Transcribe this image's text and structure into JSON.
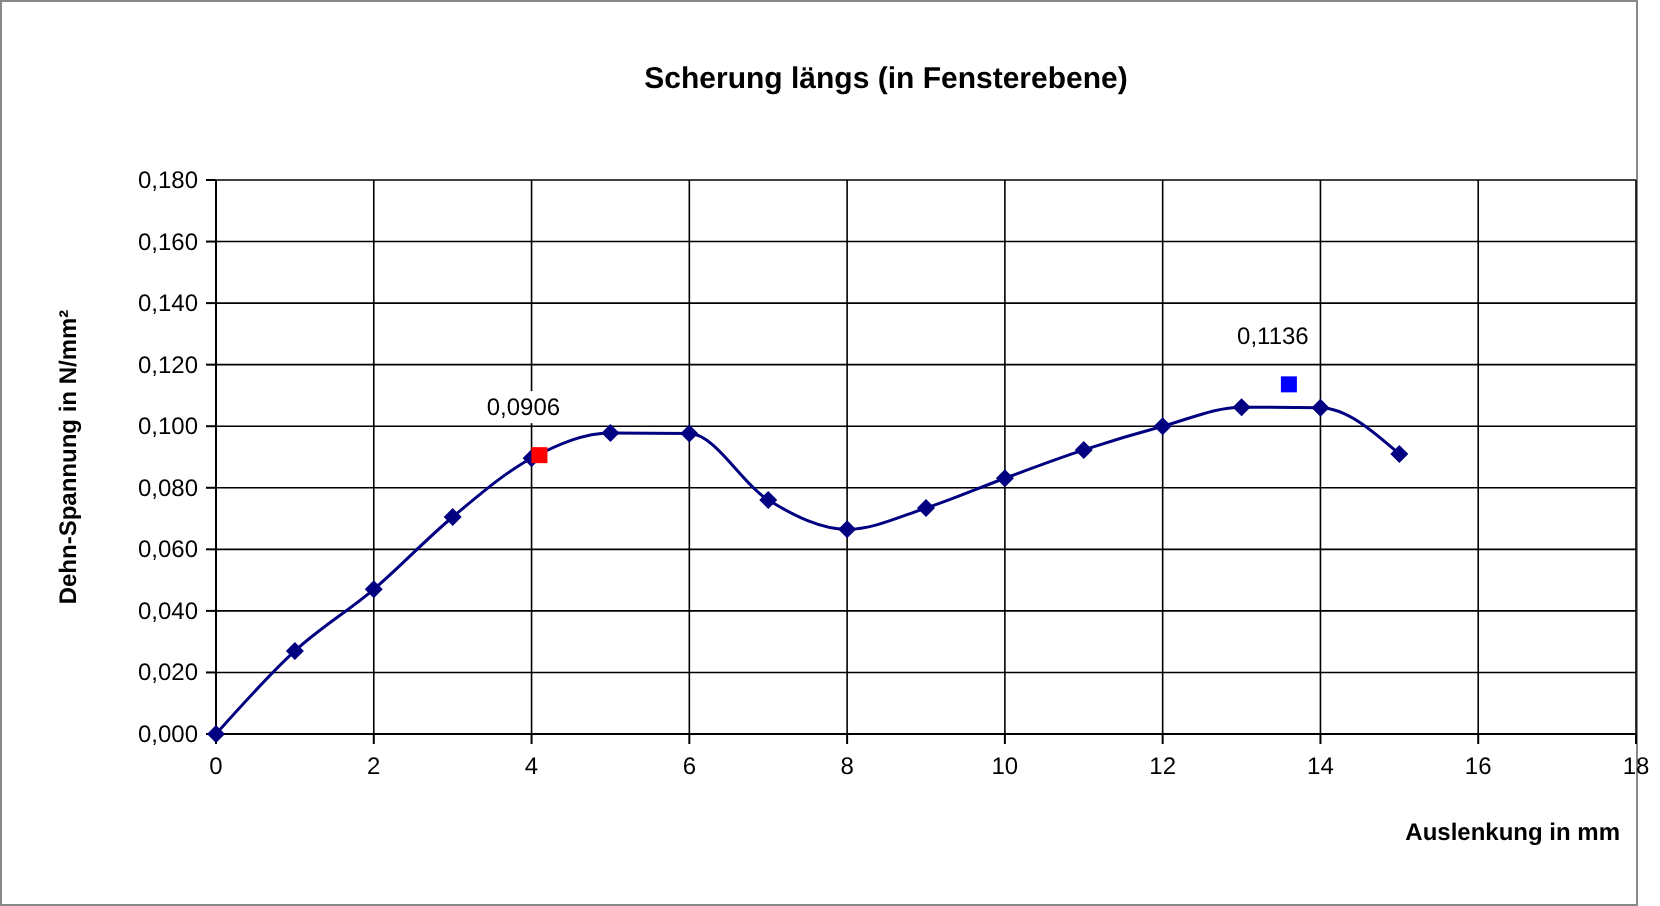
{
  "chart_data": {
    "type": "line",
    "title": "Scherung längs (in Fensterebene)",
    "xlabel": "Auslenkung in mm",
    "ylabel": "Dehn-Spannung in N/mm²",
    "xlim": [
      0,
      18
    ],
    "xticks": [
      0,
      2,
      4,
      6,
      8,
      10,
      12,
      14,
      16,
      18
    ],
    "ylim": [
      0,
      0.18
    ],
    "yticks": [
      {
        "value": 0,
        "label": "0,000"
      },
      {
        "value": 0.02,
        "label": "0,020"
      },
      {
        "value": 0.04,
        "label": "0,040"
      },
      {
        "value": 0.06,
        "label": "0,060"
      },
      {
        "value": 0.08,
        "label": "0,080"
      },
      {
        "value": 0.1,
        "label": "0,100"
      },
      {
        "value": 0.12,
        "label": "0,120"
      },
      {
        "value": 0.14,
        "label": "0,140"
      },
      {
        "value": 0.16,
        "label": "0,160"
      },
      {
        "value": 0.18,
        "label": "0,180"
      }
    ],
    "grid": true,
    "series": [
      {
        "color": "#000080",
        "marker": "diamond",
        "x": [
          0,
          1,
          2,
          3,
          4,
          5,
          6,
          7,
          8,
          9,
          10,
          11,
          12,
          13,
          14,
          15
        ],
        "values": [
          0,
          0.027,
          0.047,
          0.0705,
          0.0896,
          0.0978,
          0.0976,
          0.076,
          0.0665,
          0.0734,
          0.0831,
          0.0923,
          0.1,
          0.1062,
          0.106,
          0.091
        ]
      },
      {
        "type": "scatter",
        "color": "#ff0000",
        "marker": "square",
        "x": [
          4.1
        ],
        "values": [
          0.0906
        ]
      },
      {
        "type": "scatter",
        "color": "#0000ff",
        "marker": "square",
        "x": [
          13.6
        ],
        "values": [
          0.1136
        ]
      }
    ],
    "annotations": [
      {
        "text": "0,0906",
        "x": 4.1,
        "y": 0.0906
      },
      {
        "text": "0,1136",
        "x": 13.6,
        "y": 0.1136
      }
    ]
  }
}
